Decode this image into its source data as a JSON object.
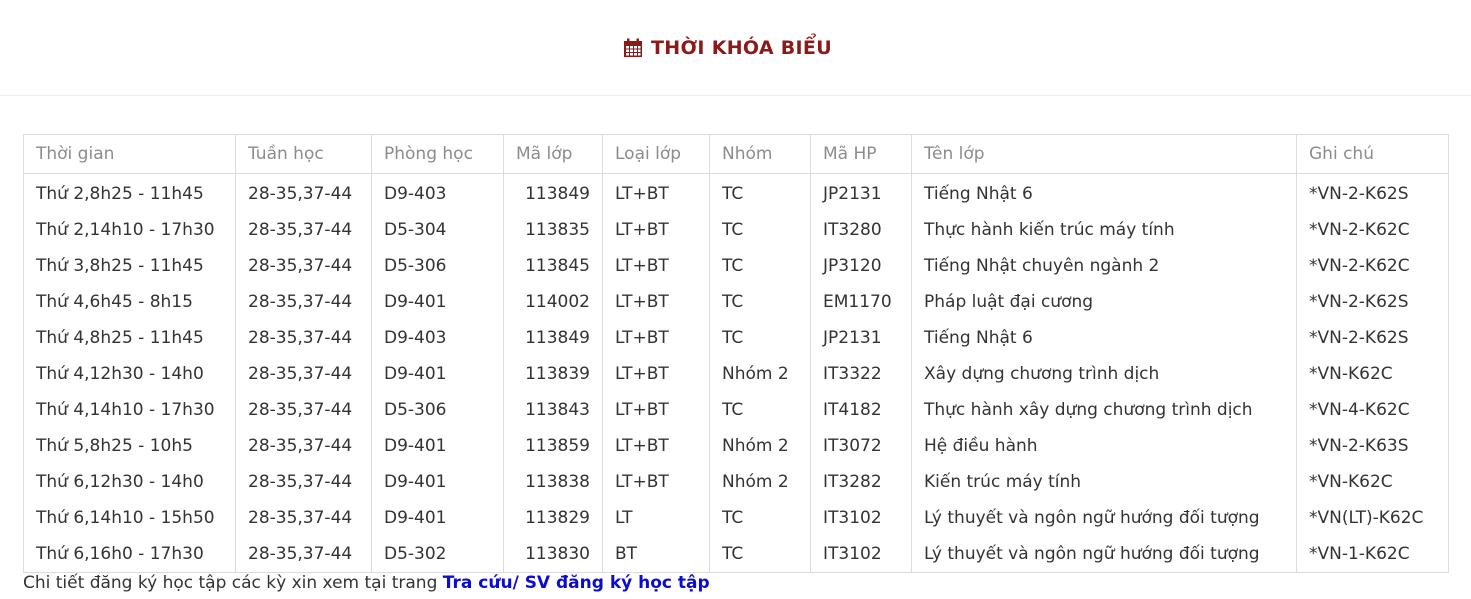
{
  "header": {
    "icon": "calendar-icon",
    "title": "THỜI KHÓA BIỂU",
    "title_color": "#8b1a1a"
  },
  "table": {
    "columns": [
      "Thời gian",
      "Tuần học",
      "Phòng học",
      "Mã lớp",
      "Loại lớp",
      "Nhóm",
      "Mã HP",
      "Tên lớp",
      "Ghi chú"
    ],
    "rows": [
      [
        "Thứ 2,8h25 - 11h45",
        "28-35,37-44",
        "D9-403",
        "113849",
        "LT+BT",
        "TC",
        "JP2131",
        "Tiếng Nhật 6",
        "*VN-2-K62S"
      ],
      [
        "Thứ 2,14h10 - 17h30",
        "28-35,37-44",
        "D5-304",
        "113835",
        "LT+BT",
        "TC",
        "IT3280",
        "Thực hành kiến trúc máy tính",
        "*VN-2-K62C"
      ],
      [
        "Thứ 3,8h25 - 11h45",
        "28-35,37-44",
        "D5-306",
        "113845",
        "LT+BT",
        "TC",
        "JP3120",
        "Tiếng Nhật chuyên ngành 2",
        "*VN-2-K62C"
      ],
      [
        "Thứ 4,6h45 - 8h15",
        "28-35,37-44",
        "D9-401",
        "114002",
        "LT+BT",
        "TC",
        "EM1170",
        "Pháp luật đại cương",
        "*VN-2-K62S"
      ],
      [
        "Thứ 4,8h25 - 11h45",
        "28-35,37-44",
        "D9-403",
        "113849",
        "LT+BT",
        "TC",
        "JP2131",
        "Tiếng Nhật 6",
        "*VN-2-K62S"
      ],
      [
        "Thứ 4,12h30 - 14h0",
        "28-35,37-44",
        "D9-401",
        "113839",
        "LT+BT",
        "Nhóm 2",
        "IT3322",
        "Xây dựng chương trình dịch",
        "*VN-K62C"
      ],
      [
        "Thứ 4,14h10 - 17h30",
        "28-35,37-44",
        "D5-306",
        "113843",
        "LT+BT",
        "TC",
        "IT4182",
        "Thực hành xây dựng chương trình dịch",
        "*VN-4-K62C"
      ],
      [
        "Thứ 5,8h25 - 10h5",
        "28-35,37-44",
        "D9-401",
        "113859",
        "LT+BT",
        "Nhóm 2",
        "IT3072",
        "Hệ điều hành",
        "*VN-2-K63S"
      ],
      [
        "Thứ 6,12h30 - 14h0",
        "28-35,37-44",
        "D9-401",
        "113838",
        "LT+BT",
        "Nhóm 2",
        "IT3282",
        "Kiến trúc máy tính",
        "*VN-K62C"
      ],
      [
        "Thứ 6,14h10 - 15h50",
        "28-35,37-44",
        "D9-401",
        "113829",
        "LT",
        "TC",
        "IT3102",
        "Lý thuyết và ngôn ngữ hướng đối tượng",
        "*VN(LT)-K62C"
      ],
      [
        "Thứ 6,16h0 - 17h30",
        "28-35,37-44",
        "D5-302",
        "113830",
        "BT",
        "TC",
        "IT3102",
        "Lý thuyết và ngôn ngữ hướng đối tượng",
        "*VN-1-K62C"
      ]
    ]
  },
  "footer": {
    "note": "Chi tiết đăng ký học tập các kỳ xin xem tại trang ",
    "link_label": "Tra cứu/ SV đăng ký học tập",
    "link_color": "#0b0bd6"
  }
}
